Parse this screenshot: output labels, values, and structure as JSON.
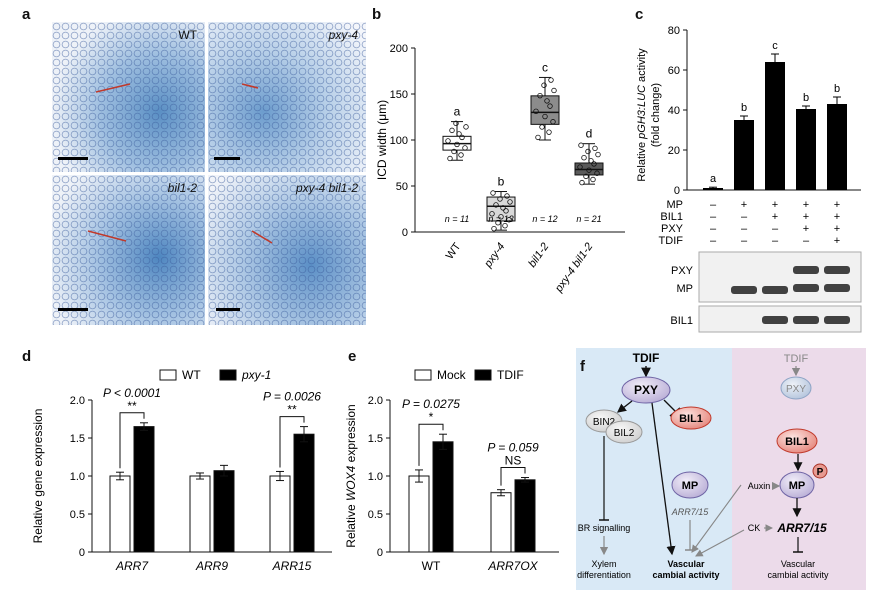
{
  "panel_a": {
    "label": "a",
    "images": [
      {
        "label": "WT",
        "italic": false
      },
      {
        "label": "pxy-4",
        "italic": true
      },
      {
        "label": "bil1-2",
        "italic": true
      },
      {
        "label": "pxy-4 bil1-2",
        "italic": true
      }
    ]
  },
  "panel_b": {
    "label": "b"
  },
  "panel_c": {
    "label": "c"
  },
  "panel_d": {
    "label": "d"
  },
  "panel_e": {
    "label": "e"
  },
  "panel_f": {
    "label": "f"
  },
  "chart_data": [
    {
      "id": "b",
      "type": "box",
      "ylabel": "ICD width (μm)",
      "ylim": [
        0,
        200
      ],
      "yticks": [
        0,
        50,
        100,
        150,
        200
      ],
      "categories": [
        "WT",
        "pxy-4",
        "bil1-2",
        "pxy-4 bil1-2"
      ],
      "boxes": [
        {
          "category": "WT",
          "min": 78,
          "q1": 89,
          "median": 96,
          "q3": 104,
          "max": 120,
          "n_label": "n = 11",
          "letter": "a",
          "fill": "#ffffff"
        },
        {
          "category": "pxy-4",
          "min": 2,
          "q1": 12,
          "median": 28,
          "q3": 38,
          "max": 44,
          "n_label": "n = 13",
          "letter": "b",
          "fill": "#d9d9d9"
        },
        {
          "category": "bil1-2",
          "min": 100,
          "q1": 117,
          "median": 130,
          "q3": 148,
          "max": 168,
          "n_label": "n = 12",
          "letter": "c",
          "fill": "#8c8c8c"
        },
        {
          "category": "pxy-4 bil1-2",
          "min": 52,
          "q1": 62,
          "median": 68,
          "q3": 75,
          "max": 96,
          "n_label": "n = 21",
          "letter": "d",
          "fill": "#5a5a5a"
        }
      ]
    },
    {
      "id": "c",
      "type": "bar",
      "ylabel_pre": "Relative ",
      "ylabel_ital": "pGH3:LUC",
      "ylabel_post": " activity",
      "ylabel2": "(fold change)",
      "ylim": [
        0,
        80
      ],
      "yticks": [
        0,
        20,
        40,
        60,
        80
      ],
      "values": [
        1,
        35,
        64,
        40.5,
        43
      ],
      "errors": [
        0.4,
        2,
        4,
        1.5,
        3.5
      ],
      "letters": [
        "a",
        "b",
        "c",
        "b",
        "b"
      ],
      "conditions": [
        {
          "name": "MP",
          "signs": [
            "–",
            "+",
            "+",
            "+",
            "+"
          ]
        },
        {
          "name": "BIL1",
          "signs": [
            "–",
            "–",
            "+",
            "+",
            "+"
          ]
        },
        {
          "name": "PXY",
          "signs": [
            "–",
            "–",
            "–",
            "+",
            "+"
          ]
        },
        {
          "name": "TDIF",
          "signs": [
            "–",
            "–",
            "–",
            "–",
            "+"
          ]
        }
      ],
      "blot_labels": {
        "pxy": "PXY",
        "mp": "MP",
        "bil1": "BIL1"
      }
    },
    {
      "id": "d",
      "type": "bar",
      "ylabel": "Relative gene expression",
      "ylim": [
        0,
        2.0
      ],
      "yticks": [
        "0",
        "0.5",
        "1.0",
        "1.5",
        "2.0"
      ],
      "categories": [
        "ARR7",
        "ARR9",
        "ARR15"
      ],
      "series": [
        {
          "name": "WT",
          "values": [
            1.0,
            1.0,
            1.0
          ],
          "errors": [
            0.05,
            0.04,
            0.06
          ],
          "color": "#ffffff"
        },
        {
          "name": "pxy-1",
          "values": [
            1.65,
            1.07,
            1.55
          ],
          "errors": [
            0.05,
            0.07,
            0.1
          ],
          "color": "#000000"
        }
      ],
      "annotations": [
        {
          "category": "ARR7",
          "p": "P < 0.0001",
          "sig": "**"
        },
        {
          "category": "ARR15",
          "p": "P = 0.0026",
          "sig": "**"
        }
      ]
    },
    {
      "id": "e",
      "type": "bar",
      "ylabel_pre": "Relative ",
      "ylabel_ital": "WOX4",
      "ylabel_post": " expression",
      "ylim": [
        0,
        2.0
      ],
      "yticks": [
        "0",
        "0.5",
        "1.0",
        "1.5",
        "2.0"
      ],
      "categories": [
        "WT",
        "ARR7OX"
      ],
      "series": [
        {
          "name": "Mock",
          "values": [
            1.0,
            0.78
          ],
          "errors": [
            0.08,
            0.04
          ],
          "color": "#ffffff"
        },
        {
          "name": "TDIF",
          "values": [
            1.45,
            0.95
          ],
          "errors": [
            0.1,
            0.03
          ],
          "color": "#000000"
        }
      ],
      "annotations": [
        {
          "category": "WT",
          "p": "P = 0.0275",
          "sig": "*"
        },
        {
          "category": "ARR7OX",
          "p": "P = 0.059",
          "sig": "NS"
        }
      ]
    }
  ],
  "diagram_f": {
    "left": {
      "tdif": "TDIF",
      "pxy": "PXY",
      "bin2": "BIN2",
      "bil2": "BIL2",
      "bil1": "BIL1",
      "mp": "MP",
      "arr_label": "ARR7/15",
      "br": "BR signalling",
      "xylem1": "Xylem",
      "xylem2": "differentiation",
      "vca1": "Vascular",
      "vca2": "cambial activity"
    },
    "right": {
      "tdif": "TDIF",
      "pxy": "PXY",
      "bil1": "BIL1",
      "p": "P",
      "mp": "MP",
      "auxin": "Auxin",
      "ck": "CK",
      "arr": "ARR7/15",
      "vca1": "Vascular",
      "vca2": "cambial activity"
    }
  }
}
